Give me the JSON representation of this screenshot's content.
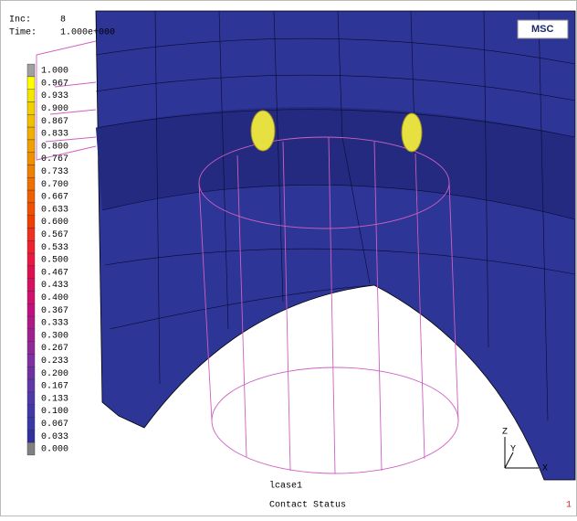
{
  "header": {
    "inc_label": "Inc:",
    "inc_value": "8",
    "time_label": "Time:",
    "time_value": "1.000e+000"
  },
  "logo": "MSC",
  "legend": [
    {
      "label": "1.000",
      "color": "#a0a0a0"
    },
    {
      "label": "0.967",
      "color": "#ffff00"
    },
    {
      "label": "0.933",
      "color": "#f5e600"
    },
    {
      "label": "0.900",
      "color": "#f0d000"
    },
    {
      "label": "0.867",
      "color": "#f0c000"
    },
    {
      "label": "0.833",
      "color": "#f0b000"
    },
    {
      "label": "0.800",
      "color": "#f0a000"
    },
    {
      "label": "0.767",
      "color": "#f09000"
    },
    {
      "label": "0.733",
      "color": "#f08000"
    },
    {
      "label": "0.700",
      "color": "#f07000"
    },
    {
      "label": "0.667",
      "color": "#f06000"
    },
    {
      "label": "0.633",
      "color": "#f05000"
    },
    {
      "label": "0.600",
      "color": "#f04000"
    },
    {
      "label": "0.567",
      "color": "#f03020"
    },
    {
      "label": "0.533",
      "color": "#f02030"
    },
    {
      "label": "0.500",
      "color": "#e81840"
    },
    {
      "label": "0.467",
      "color": "#e01050"
    },
    {
      "label": "0.433",
      "color": "#d81060"
    },
    {
      "label": "0.400",
      "color": "#d01070"
    },
    {
      "label": "0.367",
      "color": "#c01080"
    },
    {
      "label": "0.333",
      "color": "#b01888"
    },
    {
      "label": "0.300",
      "color": "#a02090"
    },
    {
      "label": "0.267",
      "color": "#902898"
    },
    {
      "label": "0.233",
      "color": "#8030a0"
    },
    {
      "label": "0.200",
      "color": "#7030a0"
    },
    {
      "label": "0.167",
      "color": "#6038a8"
    },
    {
      "label": "0.133",
      "color": "#5038a8"
    },
    {
      "label": "0.100",
      "color": "#4038a8"
    },
    {
      "label": "0.067",
      "color": "#3838a8"
    },
    {
      "label": "0.033",
      "color": "#3030a0"
    },
    {
      "label": "0.000",
      "color": "#808080"
    }
  ],
  "case_name": "lcase1",
  "result_title": "Contact Status",
  "frame_number": "1",
  "axes": {
    "z": "Z",
    "y": "Y",
    "x": "X"
  }
}
